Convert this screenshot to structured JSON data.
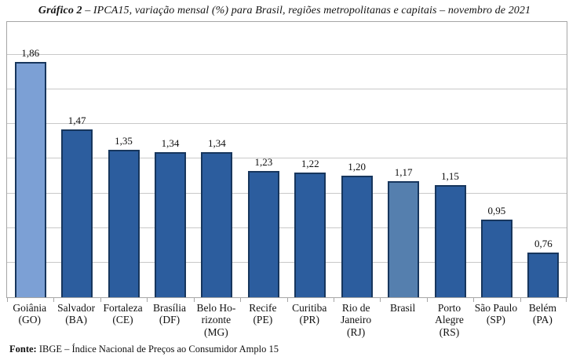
{
  "title": {
    "prefix": "Gráfico 2",
    "rest": " – IPCA15, variação mensal (%) para Brasil, regiões metropolitanas e capitais – novembro de 2021"
  },
  "footer": {
    "label": "Fonte:",
    "text": " IBGE – Índice Nacional de Preços ao Consumidor Amplo 15"
  },
  "chart_data": {
    "type": "bar",
    "title": "Gráfico 2 – IPCA15, variação mensal (%) para Brasil, regiões metropolitanas e capitais – novembro de 2021",
    "source": "Fonte: IBGE – Índice Nacional de Preços ao Consumidor Amplo 15",
    "categories": [
      [
        "Goiânia",
        "(GO)"
      ],
      [
        "Salvador",
        "(BA)"
      ],
      [
        "Fortaleza",
        "(CE)"
      ],
      [
        "Brasília",
        "(DF)"
      ],
      [
        "Belo Ho-",
        "rizonte",
        "(MG)"
      ],
      [
        "Recife",
        "(PE)"
      ],
      [
        "Curitiba",
        "(PR)"
      ],
      [
        "Rio de",
        "Janeiro",
        "(RJ)"
      ],
      [
        "Brasil"
      ],
      [
        "Porto",
        "Alegre",
        "(RS)"
      ],
      [
        "São Paulo",
        "(SP)"
      ],
      [
        "Belém",
        "(PA)"
      ]
    ],
    "values": [
      1.86,
      1.47,
      1.35,
      1.34,
      1.34,
      1.23,
      1.22,
      1.2,
      1.17,
      1.15,
      0.95,
      0.76
    ],
    "value_labels": [
      "1,86",
      "1,47",
      "1,35",
      "1,34",
      "1,34",
      "1,23",
      "1,22",
      "1,20",
      "1,17",
      "1,15",
      "0,95",
      "0,76"
    ],
    "xlabel": "",
    "ylabel": "",
    "ylim": [
      0.5,
      2.09
    ],
    "grid": true,
    "grid_values": [
      0.7,
      0.9,
      1.1,
      1.3,
      1.5,
      1.7,
      1.9
    ],
    "legend": false,
    "colors": {
      "bar_default": "#2c5d9e",
      "bar_goiania_highlight": "#7ca0d5",
      "bar_brasil_highlight": "#557fae",
      "bar_border": "#17365d",
      "gridline": "#c9c9c9",
      "frame": "#a6a6a6"
    },
    "bar_colors": [
      "#7ca0d5",
      "#2c5d9e",
      "#2c5d9e",
      "#2c5d9e",
      "#2c5d9e",
      "#2c5d9e",
      "#2c5d9e",
      "#2c5d9e",
      "#557fae",
      "#2c5d9e",
      "#2c5d9e",
      "#2c5d9e"
    ]
  }
}
